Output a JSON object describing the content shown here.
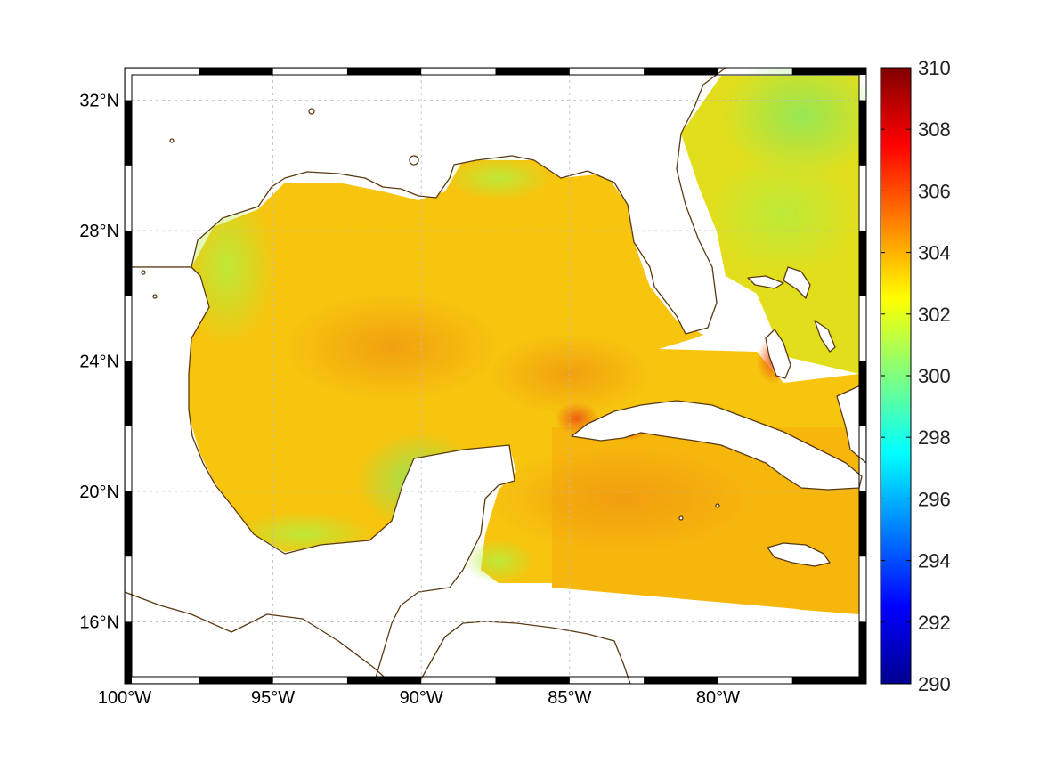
{
  "map": {
    "extent": {
      "lon_min": -100,
      "lon_max": -75,
      "lat_min": 14.1,
      "lat_max": 33
    },
    "lat_ticks": [
      {
        "value": 32,
        "label": "32°N"
      },
      {
        "value": 28,
        "label": "28°N"
      },
      {
        "value": 24,
        "label": "24°N"
      },
      {
        "value": 20,
        "label": "20°N"
      },
      {
        "value": 16,
        "label": "16°N"
      }
    ],
    "lon_ticks": [
      {
        "value": -100,
        "label": "100°W"
      },
      {
        "value": -95,
        "label": "95°W"
      },
      {
        "value": -90,
        "label": "90°W"
      },
      {
        "value": -85,
        "label": "85°W"
      },
      {
        "value": -80,
        "label": "80°W"
      }
    ],
    "grid": true,
    "coastline_color": "#5a3a12",
    "land_color": "#ffffff"
  },
  "colorbar": {
    "min": 290,
    "max": 310,
    "ticks": [
      "310",
      "308",
      "306",
      "304",
      "302",
      "300",
      "298",
      "296",
      "294",
      "292",
      "290"
    ],
    "colormap": "jet"
  },
  "field": {
    "typical_value": 303,
    "warm_spots": [
      {
        "region": "Central Gulf",
        "value": 304
      },
      {
        "region": "South of Florida Straits",
        "value": 304.5
      },
      {
        "region": "Northwest Cuba coast",
        "value": 305
      },
      {
        "region": "Andros Island",
        "value": 305
      }
    ],
    "cool_spots": [
      {
        "region": "Texas shelf",
        "value": 301.5
      },
      {
        "region": "Campeche Bank",
        "value": 301
      },
      {
        "region": "Mississippi Bight",
        "value": 301.5
      },
      {
        "region": "Atlantic off Georgia",
        "value": 301.5
      }
    ]
  }
}
